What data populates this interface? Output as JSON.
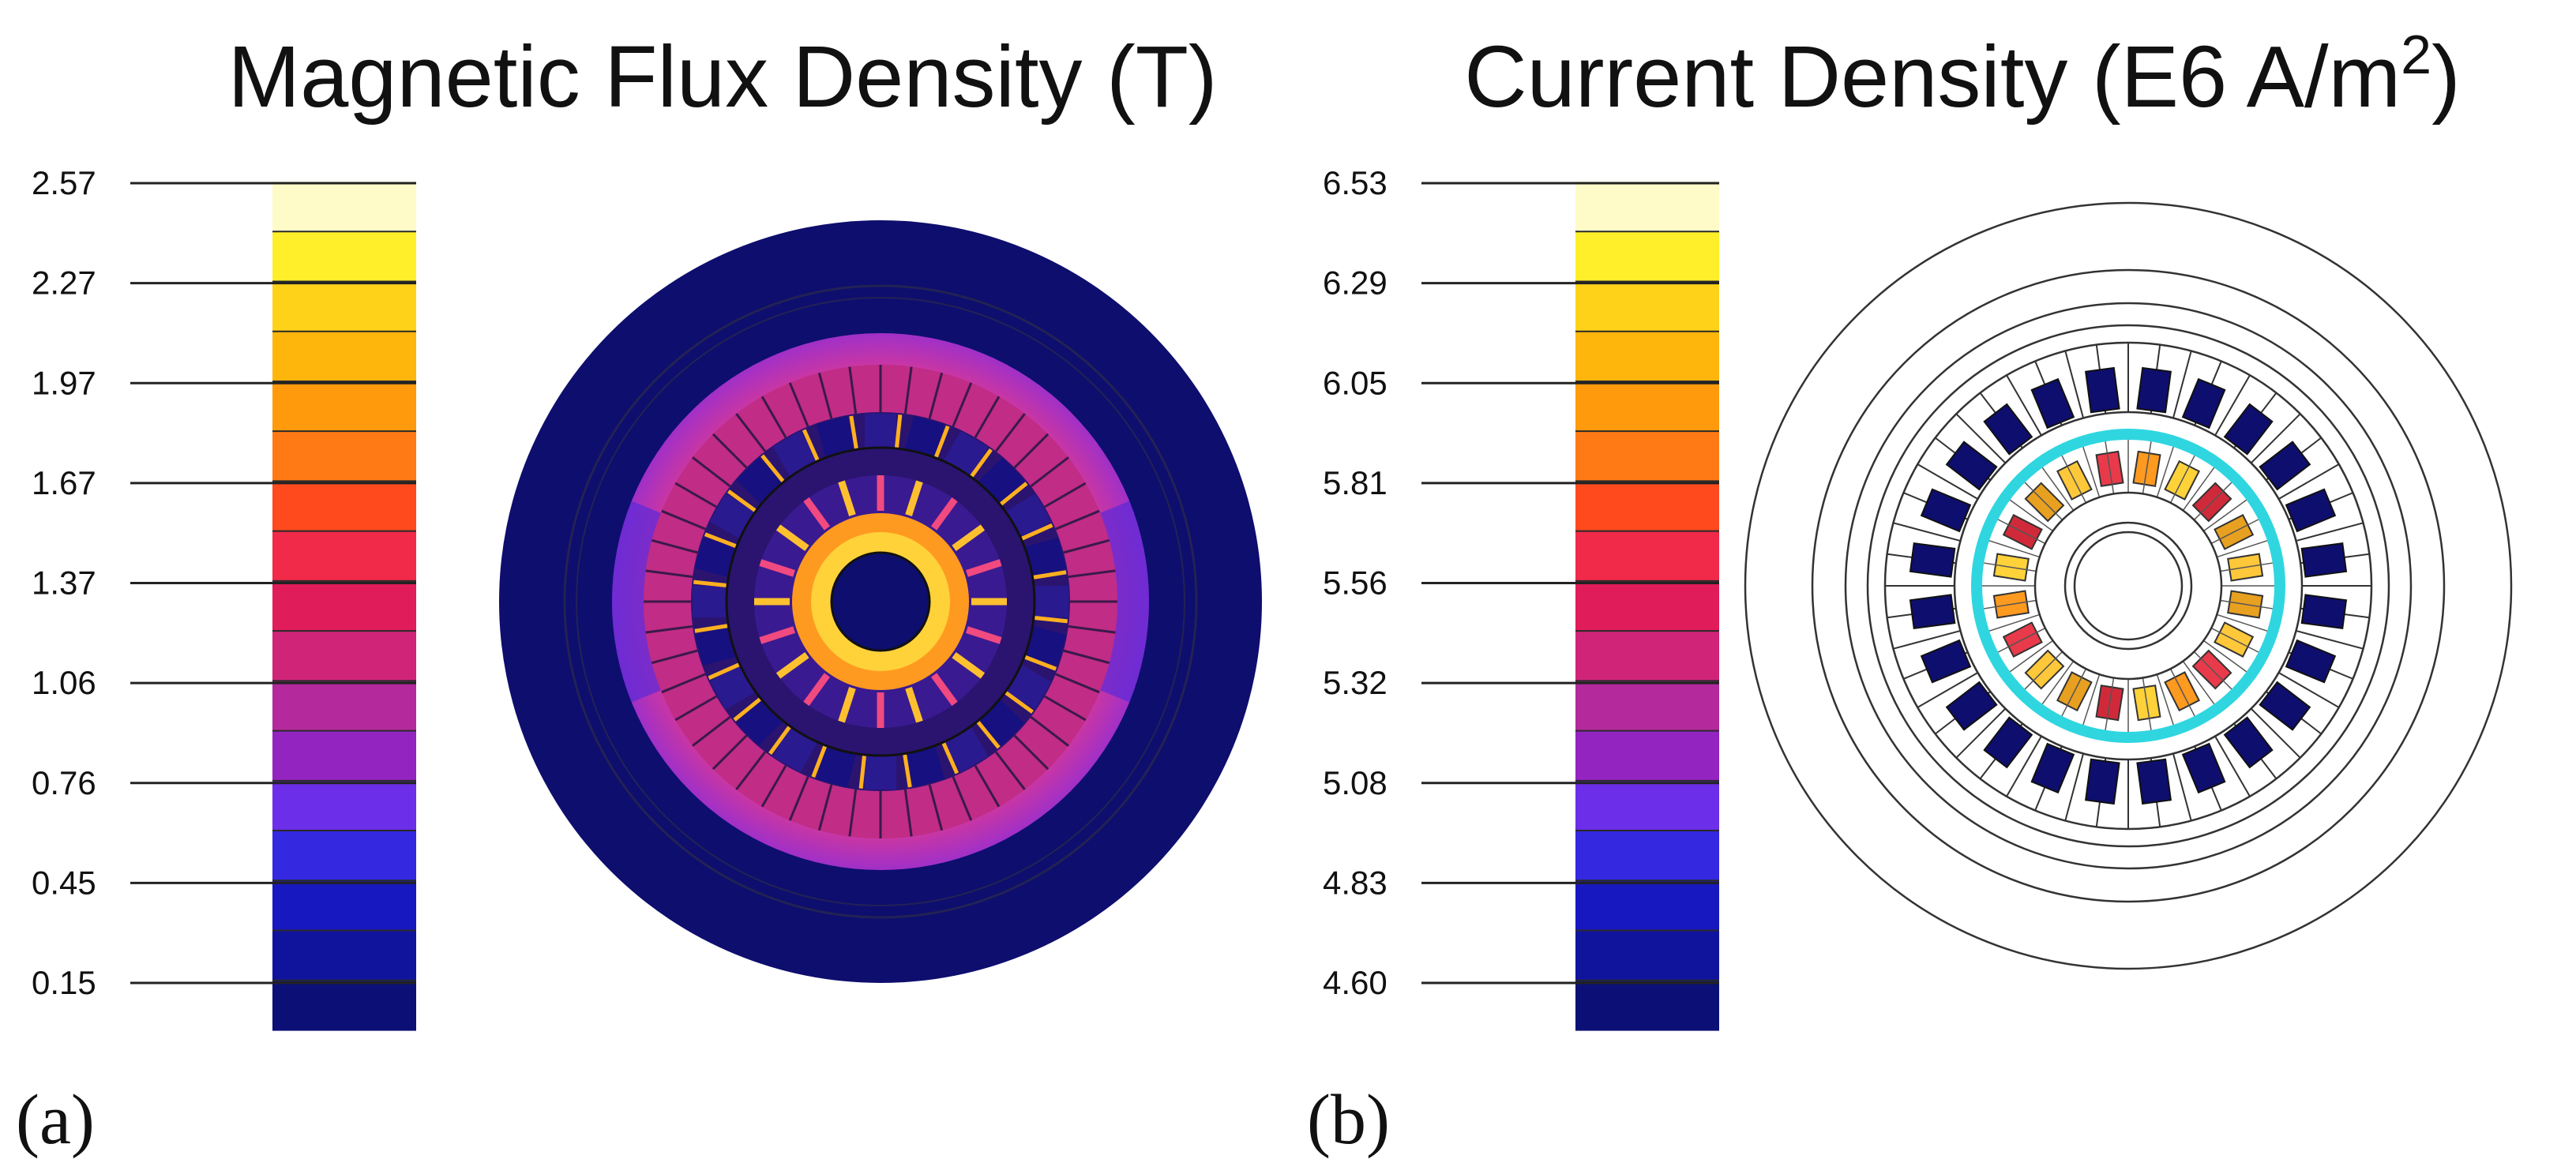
{
  "panel_a": {
    "title": "Magnetic Flux Density (T)",
    "label": "(a)",
    "ticks": [
      "2.57",
      "2.27",
      "1.97",
      "1.67",
      "1.37",
      "1.06",
      "0.76",
      "0.45",
      "0.15"
    ]
  },
  "panel_b": {
    "title_main": "Current Density (E6 A/m",
    "title_sup": "2",
    "title_end": ")",
    "label": "(b)",
    "ticks": [
      "6.53",
      "6.29",
      "6.05",
      "5.81",
      "5.56",
      "5.32",
      "5.08",
      "4.83",
      "4.60"
    ]
  },
  "colors": {
    "scale": [
      "#fffbc8",
      "#ffef2a",
      "#ffd21a",
      "#ffb60c",
      "#ff9a0c",
      "#ff7a14",
      "#ff4a1e",
      "#f02a48",
      "#e01c5a",
      "#d02478",
      "#b42a9c",
      "#9424c0",
      "#6c2ee8",
      "#3428e0",
      "#1818c0",
      "#10149c",
      "#0c1076"
    ],
    "background_blue": "#0e0e6e",
    "cyan_ring": "#2fd6e0",
    "stroke": "#333333"
  }
}
